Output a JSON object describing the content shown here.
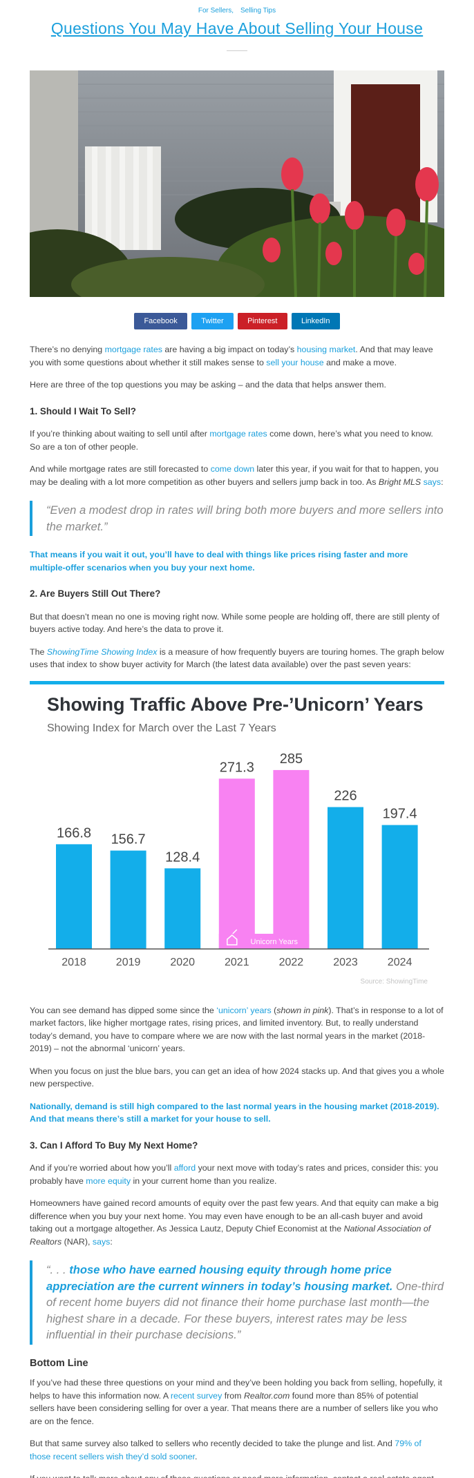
{
  "header": {
    "categories": [
      "For Sellers,",
      "Selling Tips"
    ],
    "title": "Questions You May Have About Selling Your House"
  },
  "share": [
    "Facebook",
    "Twitter",
    "Pinterest",
    "LinkedIn"
  ],
  "body": [
    {
      "kind": "p",
      "parts": [
        "There’s no denying ",
        {
          "link": "mortgage rates"
        },
        " are having a big impact on today’s ",
        {
          "link": "housing market"
        },
        ". And that may leave you with some questions about whether it still makes sense to ",
        {
          "link": "sell your house"
        },
        " and make a move."
      ]
    },
    {
      "kind": "p",
      "parts": [
        "Here are three of the top questions you may be asking – and the data that helps answer them."
      ]
    },
    {
      "kind": "h",
      "parts": [
        "1. Should I Wait To Sell?"
      ]
    },
    {
      "kind": "p",
      "parts": [
        "If you’re thinking about waiting to sell until after ",
        {
          "link": "mortgage rates"
        },
        " come down, here’s what you need to know. So are a ton of other people."
      ]
    },
    {
      "kind": "p",
      "parts": [
        "And while mortgage rates are still forecasted to ",
        {
          "link": "come down"
        },
        " later this year, if you wait for that to happen, you may be dealing with a lot more competition as other buyers and sellers jump back in too. As ",
        {
          "em": "Bright MLS"
        },
        " ",
        {
          "link": "says"
        },
        ":"
      ]
    },
    {
      "kind": "quote",
      "parts": [
        "“Even a modest drop in rates will bring both more buyers and more sellers into the market.”"
      ]
    },
    {
      "kind": "callout",
      "parts": [
        "That means if you wait it out, you’ll have to deal with things like prices rising faster and more multiple-offer scenarios when you buy your next home."
      ]
    },
    {
      "kind": "h",
      "parts": [
        "2. Are Buyers Still Out There?"
      ]
    },
    {
      "kind": "p",
      "parts": [
        "But that doesn’t mean no one is moving right now. While some people are holding off, there are still plenty of buyers active today. And here’s the data to prove it."
      ]
    },
    {
      "kind": "p",
      "parts": [
        "The ",
        {
          "emlink": "ShowingTime Showing Index"
        },
        " is a measure of how frequently buyers are touring homes. The graph below uses that index to show buyer activity for March (the latest data available) over the past seven years:"
      ]
    }
  ],
  "chart_data": {
    "type": "bar",
    "title": "Showing Traffic Above Pre-’Unicorn’ Years",
    "subtitle": "Showing Index for March over the Last 7 Years",
    "categories": [
      "2018",
      "2019",
      "2020",
      "2021",
      "2022",
      "2023",
      "2024"
    ],
    "values": [
      166.8,
      156.7,
      128.4,
      271.3,
      285,
      226,
      197.4
    ],
    "colors": [
      "#13aeea",
      "#13aeea",
      "#13aeea",
      "#f882f2",
      "#f882f2",
      "#13aeea",
      "#13aeea"
    ],
    "annotation": "Unicorn Years",
    "source": "Source: ShowingTime"
  },
  "body2": [
    {
      "kind": "p",
      "parts": [
        "You can see demand has dipped some since the ",
        {
          "link": "‘unicorn’ years"
        },
        " (",
        {
          "em": "shown in pink"
        },
        "). That’s in response to a lot of market factors, like higher mortgage rates, rising prices, and limited inventory. But, to really understand today’s demand, you have to compare where we are now with the last normal years in the market (2018-2019) – not the abnormal ‘unicorn’ years."
      ]
    },
    {
      "kind": "p",
      "parts": [
        "When you focus on just the blue bars, you can get an idea of how 2024 stacks up. And that gives you a whole new perspective."
      ]
    },
    {
      "kind": "callout",
      "parts": [
        "Nationally, demand is still high compared to the last normal years in the housing market (2018-2019). And that means there’s still a market for your house to sell."
      ]
    },
    {
      "kind": "h",
      "parts": [
        "3. Can I Afford To Buy My Next Home?"
      ]
    },
    {
      "kind": "p",
      "parts": [
        "And if you’re worried about how you’ll ",
        {
          "link": "afford"
        },
        " your next move with today’s rates and prices, consider this: you probably have ",
        {
          "link": "more equity"
        },
        " in your current home than you realize."
      ]
    },
    {
      "kind": "p",
      "parts": [
        "Homeowners have gained record amounts of equity over the past few years. And that equity can make a big difference when you buy your next home. You may even have enough to be an all-cash buyer and avoid taking out a mortgage altogether. As Jessica Lautz, Deputy Chief Economist at the ",
        {
          "em": "National Association of Realtors"
        },
        " (NAR), ",
        {
          "link": "says"
        },
        ":"
      ]
    },
    {
      "kind": "quote",
      "parts": [
        "“. . . ",
        {
          "strong": "those who have earned housing equity through home price appreciation are the current winners in today’s housing market."
        },
        " One-third of recent home buyers did not finance their home purchase last month—the highest share in a decade. For these buyers, interest rates may be less influential in their purchase decisions.”"
      ]
    },
    {
      "kind": "h2",
      "parts": [
        "Bottom Line"
      ]
    },
    {
      "kind": "p",
      "parts": [
        "If you’ve had these three questions on your mind and they’ve been holding you back from selling, hopefully, it helps to have this information now. A ",
        {
          "link": "recent survey"
        },
        " from ",
        {
          "em": "Realtor.com"
        },
        " found more than 85% of potential sellers have been considering selling for over a year. That means there are a number of sellers like you who are on the fence."
      ]
    },
    {
      "kind": "p",
      "parts": [
        "But that same survey also talked to sellers who recently decided to take the plunge and list. And ",
        {
          "link": "79% of those recent sellers wish they’d sold sooner"
        },
        "."
      ]
    },
    {
      "kind": "p",
      "parts": [
        "If you want to talk more about any of these questions or need more information, contact a real estate agent."
      ]
    }
  ]
}
